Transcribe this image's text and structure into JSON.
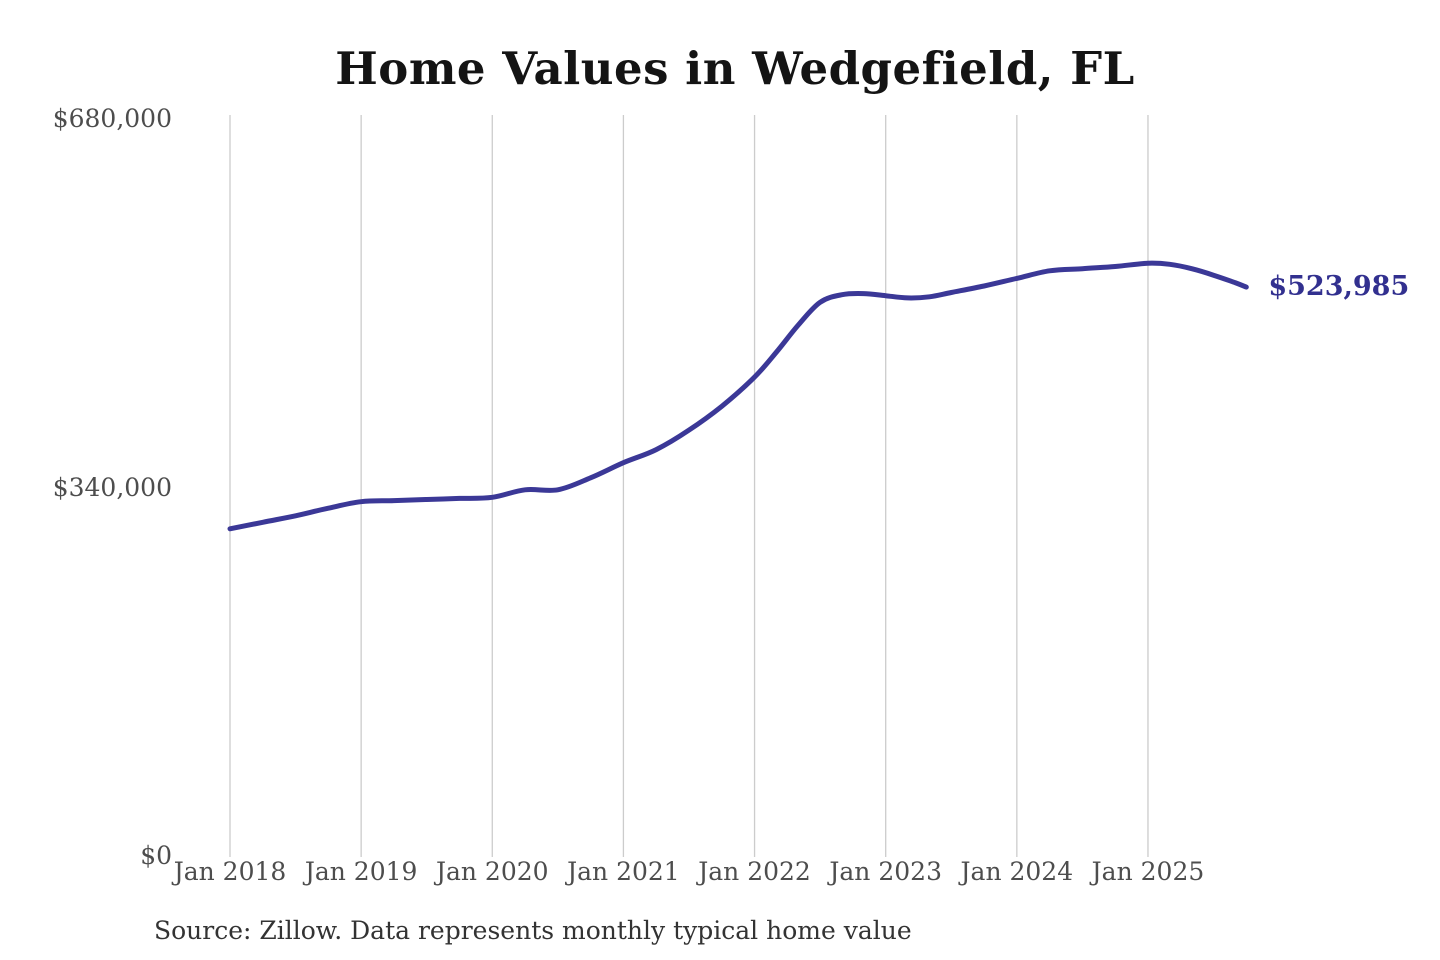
{
  "page": {
    "background_color": "#ffffff"
  },
  "chart_data": {
    "type": "line",
    "title": "Home Values in Wedgefield, FL",
    "xlabel": "",
    "ylabel": "",
    "ylim": [
      0,
      680000
    ],
    "grid": "vertical-only",
    "legend_position": "none",
    "line_color": "#3b3897",
    "gridline_color": "#cccccc",
    "end_label": "$523,985",
    "end_label_color": "#32308f",
    "y_ticks": [
      {
        "value": 0,
        "label": "$0"
      },
      {
        "value": 340000,
        "label": "$340,000"
      },
      {
        "value": 680000,
        "label": "$680,000"
      }
    ],
    "x_ticks": [
      "Jan 2018",
      "Jan 2019",
      "Jan 2020",
      "Jan 2021",
      "Jan 2022",
      "Jan 2023",
      "Jan 2024",
      "Jan 2025"
    ],
    "series": [
      {
        "name": "Monthly typical home value",
        "points": [
          [
            "2018-01",
            301000
          ],
          [
            "2018-04",
            307000
          ],
          [
            "2018-07",
            313000
          ],
          [
            "2018-10",
            320000
          ],
          [
            "2019-01",
            326000
          ],
          [
            "2019-04",
            327000
          ],
          [
            "2019-07",
            328000
          ],
          [
            "2019-10",
            329000
          ],
          [
            "2020-01",
            330000
          ],
          [
            "2020-04",
            337000
          ],
          [
            "2020-07",
            337000
          ],
          [
            "2020-10",
            348000
          ],
          [
            "2021-01",
            362000
          ],
          [
            "2021-04",
            374000
          ],
          [
            "2021-07",
            392000
          ],
          [
            "2021-10",
            414000
          ],
          [
            "2022-01",
            441000
          ],
          [
            "2022-03",
            464000
          ],
          [
            "2022-05",
            489000
          ],
          [
            "2022-07",
            510000
          ],
          [
            "2022-09",
            517000
          ],
          [
            "2022-11",
            518000
          ],
          [
            "2023-01",
            516000
          ],
          [
            "2023-03",
            514000
          ],
          [
            "2023-05",
            515000
          ],
          [
            "2023-07",
            519000
          ],
          [
            "2023-10",
            525000
          ],
          [
            "2024-01",
            532000
          ],
          [
            "2024-04",
            539000
          ],
          [
            "2024-07",
            541000
          ],
          [
            "2024-10",
            543000
          ],
          [
            "2025-01",
            546000
          ],
          [
            "2025-03",
            545000
          ],
          [
            "2025-05",
            541000
          ],
          [
            "2025-07",
            535000
          ],
          [
            "2025-09",
            528000
          ],
          [
            "2025-10",
            523985
          ]
        ]
      }
    ],
    "source_note": "Source: Zillow. Data represents monthly typical home value"
  }
}
